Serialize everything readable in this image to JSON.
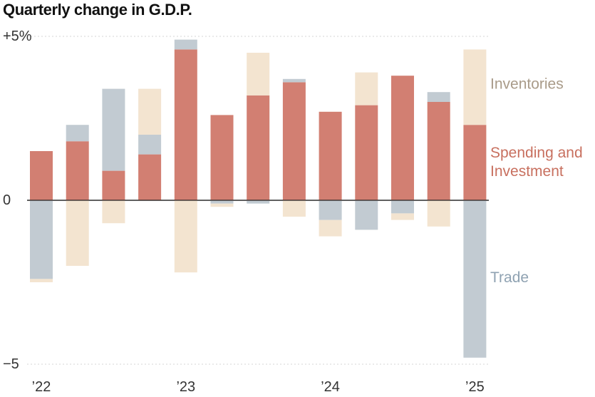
{
  "chart_data": {
    "type": "bar",
    "stacked": true,
    "title": "Quarterly change in G.D.P.",
    "xlabel": "",
    "ylabel": "",
    "ylim": [
      -5,
      5
    ],
    "grid": true,
    "yticks": [
      {
        "value": 5,
        "label": "+5%"
      },
      {
        "value": 0,
        "label": "0"
      },
      {
        "value": -5,
        "label": "−5"
      }
    ],
    "xticks": [
      {
        "index": 0,
        "label": "’22"
      },
      {
        "index": 4,
        "label": "’23"
      },
      {
        "index": 8,
        "label": "’24"
      },
      {
        "index": 12,
        "label": "’25"
      }
    ],
    "categories": [
      "2022 Q1",
      "2022 Q2",
      "2022 Q3",
      "2022 Q4",
      "2023 Q1",
      "2023 Q2",
      "2023 Q3",
      "2023 Q4",
      "2024 Q1",
      "2024 Q2",
      "2024 Q3",
      "2024 Q4",
      "2025 Q1"
    ],
    "series": [
      {
        "name": "Spending and Investment",
        "color": "#d27f72",
        "values": [
          1.5,
          1.8,
          0.9,
          1.4,
          4.6,
          2.6,
          3.2,
          3.6,
          2.7,
          2.9,
          3.8,
          3.0,
          2.3
        ]
      },
      {
        "name": "Trade",
        "color": "#c2cbd2",
        "values": [
          -2.4,
          0.5,
          2.5,
          0.6,
          0.3,
          -0.1,
          -0.1,
          0.1,
          -0.6,
          -0.9,
          -0.4,
          0.3,
          -4.8
        ]
      },
      {
        "name": "Inventories",
        "color": "#f3e4d0",
        "values": [
          -0.1,
          -2.0,
          -0.7,
          1.4,
          -2.2,
          -0.1,
          1.3,
          -0.5,
          -0.5,
          1.0,
          -0.2,
          -0.8,
          2.3
        ]
      }
    ],
    "legend": [
      {
        "lines": [
          "Inventories"
        ],
        "value_anchor": 3.4,
        "color": "#a99b89"
      },
      {
        "lines": [
          "Spending and",
          "Investment"
        ],
        "value_anchor": 1.3,
        "color": "#c8705f"
      },
      {
        "lines": [
          "Trade"
        ],
        "value_anchor": -2.5,
        "color": "#8fa2b2"
      }
    ],
    "legend_placement": "right"
  }
}
